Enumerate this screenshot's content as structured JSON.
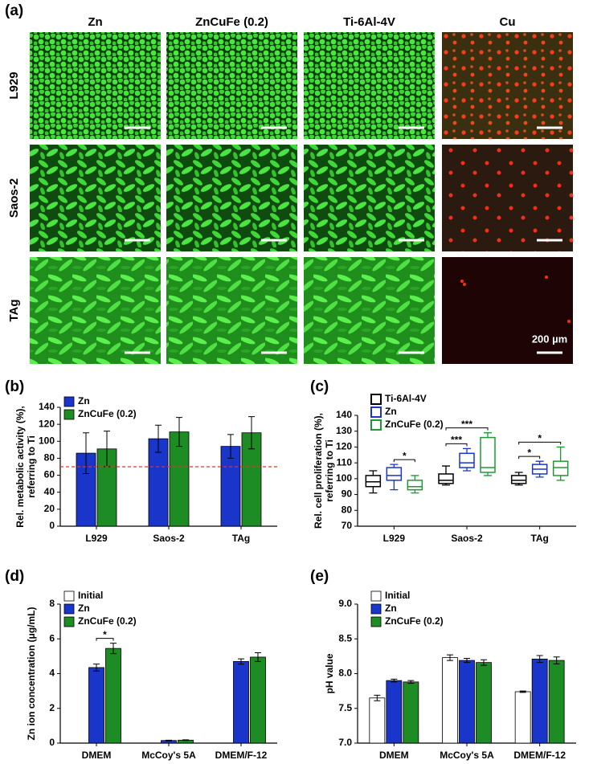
{
  "micrographs": {
    "panel_label": "(a)",
    "columns": [
      "Zn",
      "ZnCuFe (0.2)",
      "Ti-6Al-4V",
      "Cu"
    ],
    "rows": [
      "L929",
      "Saos-2",
      "TAg"
    ],
    "scale_bar": "200 µm"
  },
  "chart_data": [
    {
      "type": "bar",
      "panel_label": "(b)",
      "ylabel": [
        "Rel. metabolic activity (%),",
        "referring to Ti"
      ],
      "categories": [
        "L929",
        "Saos-2",
        "TAg"
      ],
      "series": [
        {
          "name": "Zn",
          "color": "#1a35c9",
          "values": [
            86,
            103,
            94
          ],
          "errors": [
            24,
            16,
            14
          ]
        },
        {
          "name": "ZnCuFe (0.2)",
          "color": "#1e8c25",
          "values": [
            91,
            111,
            110
          ],
          "errors": [
            21,
            17,
            19
          ]
        }
      ],
      "ylim": [
        0,
        140
      ],
      "yticks": [
        0,
        20,
        40,
        60,
        80,
        100,
        120,
        140
      ],
      "reference_line": 70,
      "reference_color": "#e8312a",
      "legend": "upper left"
    },
    {
      "type": "box",
      "panel_label": "(c)",
      "ylabel": [
        "Rel. cell proliferation (%),",
        "referring to Ti"
      ],
      "categories": [
        "L929",
        "Saos-2",
        "TAg"
      ],
      "series": [
        {
          "name": "Ti-6Al-4V",
          "color": "#000000",
          "min": [
            91,
            96,
            96
          ],
          "q1": [
            95,
            97,
            97
          ],
          "median": [
            98,
            99,
            99
          ],
          "q3": [
            102,
            103,
            102
          ],
          "max": [
            105,
            108,
            104
          ]
        },
        {
          "name": "Zn",
          "color": "#1a35c9",
          "min": [
            93,
            105,
            101
          ],
          "q1": [
            99,
            107,
            103
          ],
          "median": [
            102,
            110,
            106
          ],
          "q3": [
            107,
            116,
            109
          ],
          "max": [
            109,
            119,
            111
          ]
        },
        {
          "name": "ZnCuFe (0.2)",
          "color": "#1e9a35",
          "min": [
            91,
            102,
            99
          ],
          "q1": [
            93,
            104,
            102
          ],
          "median": [
            95,
            107,
            107
          ],
          "q3": [
            99,
            126,
            111
          ],
          "max": [
            102,
            129,
            120
          ]
        }
      ],
      "ylim": [
        70,
        140
      ],
      "yticks": [
        70,
        80,
        90,
        100,
        110,
        120,
        130,
        140
      ],
      "legend": "upper left",
      "significance": [
        {
          "text": "*",
          "category": "L929",
          "between": [
            "Zn",
            "ZnCuFe (0.2)"
          ]
        },
        {
          "text": "***",
          "category": "Saos-2",
          "between": [
            "Ti-6Al-4V",
            "Zn"
          ]
        },
        {
          "text": "***",
          "category": "Saos-2",
          "between": [
            "Ti-6Al-4V",
            "ZnCuFe (0.2)"
          ]
        },
        {
          "text": "*",
          "category": "TAg",
          "between": [
            "Ti-6Al-4V",
            "Zn"
          ]
        },
        {
          "text": "*",
          "category": "TAg",
          "between": [
            "Ti-6Al-4V",
            "ZnCuFe (0.2)"
          ]
        }
      ]
    },
    {
      "type": "bar",
      "panel_label": "(d)",
      "ylabel": [
        "Zn ion concentration (μg/mL)"
      ],
      "categories": [
        "DMEM",
        "McCoy's 5A",
        "DMEM/F-12"
      ],
      "series": [
        {
          "name": "Initial",
          "color": "#ffffff",
          "values": [
            0,
            0,
            0
          ],
          "errors": [
            0,
            0,
            0
          ]
        },
        {
          "name": "Zn",
          "color": "#1a35c9",
          "values": [
            4.35,
            0.15,
            4.7
          ],
          "errors": [
            0.2,
            0.02,
            0.15
          ]
        },
        {
          "name": "ZnCuFe (0.2)",
          "color": "#1e8c25",
          "values": [
            5.45,
            0.17,
            4.95
          ],
          "errors": [
            0.3,
            0.02,
            0.25
          ]
        }
      ],
      "ylim": [
        0,
        8
      ],
      "yticks": [
        0,
        2,
        4,
        6,
        8
      ],
      "legend": "upper left",
      "significance": [
        {
          "text": "*",
          "category": "DMEM",
          "between": [
            "Zn",
            "ZnCuFe (0.2)"
          ]
        }
      ]
    },
    {
      "type": "bar",
      "panel_label": "(e)",
      "ylabel": [
        "pH value"
      ],
      "categories": [
        "DMEM",
        "McCoy's 5A",
        "DMEM/F-12"
      ],
      "series": [
        {
          "name": "Initial",
          "color": "#ffffff",
          "values": [
            7.65,
            8.23,
            7.74
          ],
          "errors": [
            0.04,
            0.04,
            0.01
          ]
        },
        {
          "name": "Zn",
          "color": "#1a35c9",
          "values": [
            7.9,
            8.19,
            8.21
          ],
          "errors": [
            0.02,
            0.03,
            0.05
          ]
        },
        {
          "name": "ZnCuFe (0.2)",
          "color": "#1e8c25",
          "values": [
            7.88,
            8.16,
            8.19
          ],
          "errors": [
            0.02,
            0.04,
            0.05
          ]
        }
      ],
      "ylim": [
        7,
        9
      ],
      "yticks": [
        {
          "value": 7,
          "label": "7.0"
        },
        {
          "value": 7.5,
          "label": "7.5"
        },
        {
          "value": 8,
          "label": "8.0"
        },
        {
          "value": 8.5,
          "label": "8.5"
        },
        {
          "value": 9,
          "label": "9.0"
        }
      ],
      "legend": "upper left"
    }
  ]
}
